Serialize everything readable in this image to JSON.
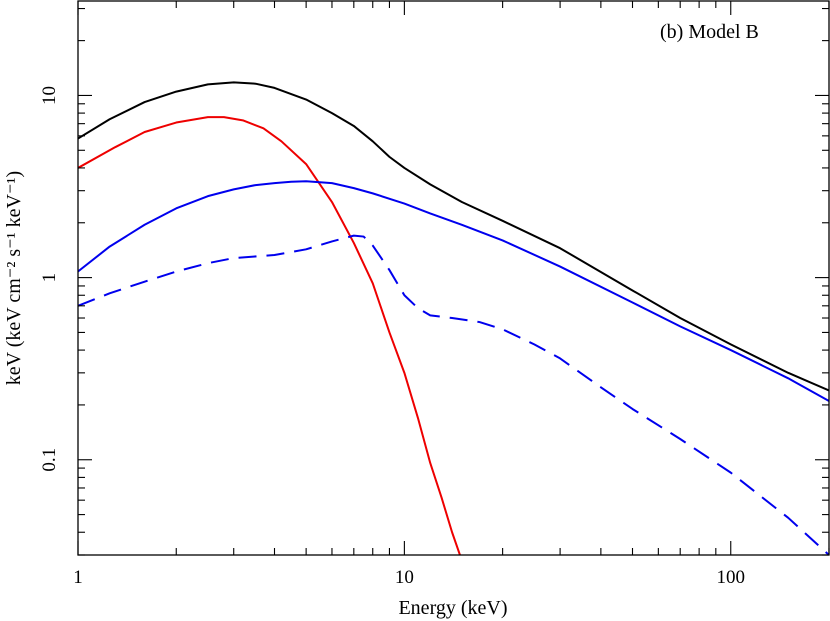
{
  "chart_data": {
    "type": "line",
    "annotation": "(b) Model B",
    "xlabel": "Energy (keV)",
    "ylabel": "keV (keV cm⁻² s⁻¹ keV⁻¹)",
    "xscale": "log",
    "yscale": "log",
    "xlim": [
      1,
      200
    ],
    "ylim": [
      0.03,
      33
    ],
    "grid": false,
    "x_tick_labels": [
      "1",
      "10",
      "100"
    ],
    "y_tick_labels": [
      "0.1",
      "1",
      "10"
    ],
    "x_major_ticks": [
      1,
      10,
      100
    ],
    "y_major_ticks": [
      0.1,
      1,
      10
    ],
    "series": [
      {
        "color": "#000000",
        "dash": "solid",
        "x": [
          1,
          1.25,
          1.6,
          2,
          2.5,
          3,
          3.5,
          4,
          5,
          6,
          7,
          8,
          9,
          10,
          12,
          15,
          20,
          30,
          50,
          70,
          100,
          150,
          200
        ],
        "y": [
          5.8,
          7.4,
          9.2,
          10.5,
          11.5,
          11.8,
          11.6,
          11.0,
          9.5,
          8.0,
          6.8,
          5.6,
          4.6,
          4.0,
          3.25,
          2.6,
          2.05,
          1.45,
          0.85,
          0.6,
          0.43,
          0.3,
          0.24
        ]
      },
      {
        "color": "#ee0000",
        "dash": "solid",
        "x": [
          1,
          1.3,
          1.6,
          2,
          2.5,
          2.8,
          3.2,
          3.7,
          4.2,
          5,
          6,
          7,
          8,
          9,
          10,
          11,
          12,
          13,
          14,
          14.8
        ],
        "y": [
          4.0,
          5.2,
          6.3,
          7.1,
          7.6,
          7.6,
          7.3,
          6.6,
          5.6,
          4.2,
          2.6,
          1.55,
          0.93,
          0.5,
          0.3,
          0.17,
          0.096,
          0.062,
          0.04,
          0.03
        ]
      },
      {
        "color": "#0000ee",
        "dash": "solid",
        "x": [
          1,
          1.25,
          1.6,
          2,
          2.5,
          3,
          3.5,
          4,
          4.5,
          5,
          6,
          7,
          8,
          10,
          12,
          15,
          20,
          30,
          50,
          70,
          100,
          150,
          200
        ],
        "y": [
          1.08,
          1.48,
          1.95,
          2.4,
          2.8,
          3.05,
          3.22,
          3.3,
          3.36,
          3.38,
          3.3,
          3.1,
          2.9,
          2.55,
          2.25,
          1.95,
          1.6,
          1.15,
          0.73,
          0.54,
          0.4,
          0.28,
          0.21
        ]
      },
      {
        "color": "#0000ee",
        "dash": "dashed",
        "x": [
          1,
          1.25,
          1.6,
          2,
          2.5,
          3,
          4,
          5,
          6,
          7,
          7.5,
          8,
          9,
          10,
          11,
          12,
          14,
          17,
          20,
          25,
          30,
          40,
          50,
          70,
          100,
          150,
          200
        ],
        "y": [
          0.7,
          0.82,
          0.95,
          1.08,
          1.2,
          1.28,
          1.33,
          1.43,
          1.58,
          1.7,
          1.68,
          1.5,
          1.1,
          0.8,
          0.68,
          0.62,
          0.6,
          0.57,
          0.52,
          0.43,
          0.36,
          0.25,
          0.19,
          0.13,
          0.085,
          0.048,
          0.03
        ]
      }
    ]
  }
}
